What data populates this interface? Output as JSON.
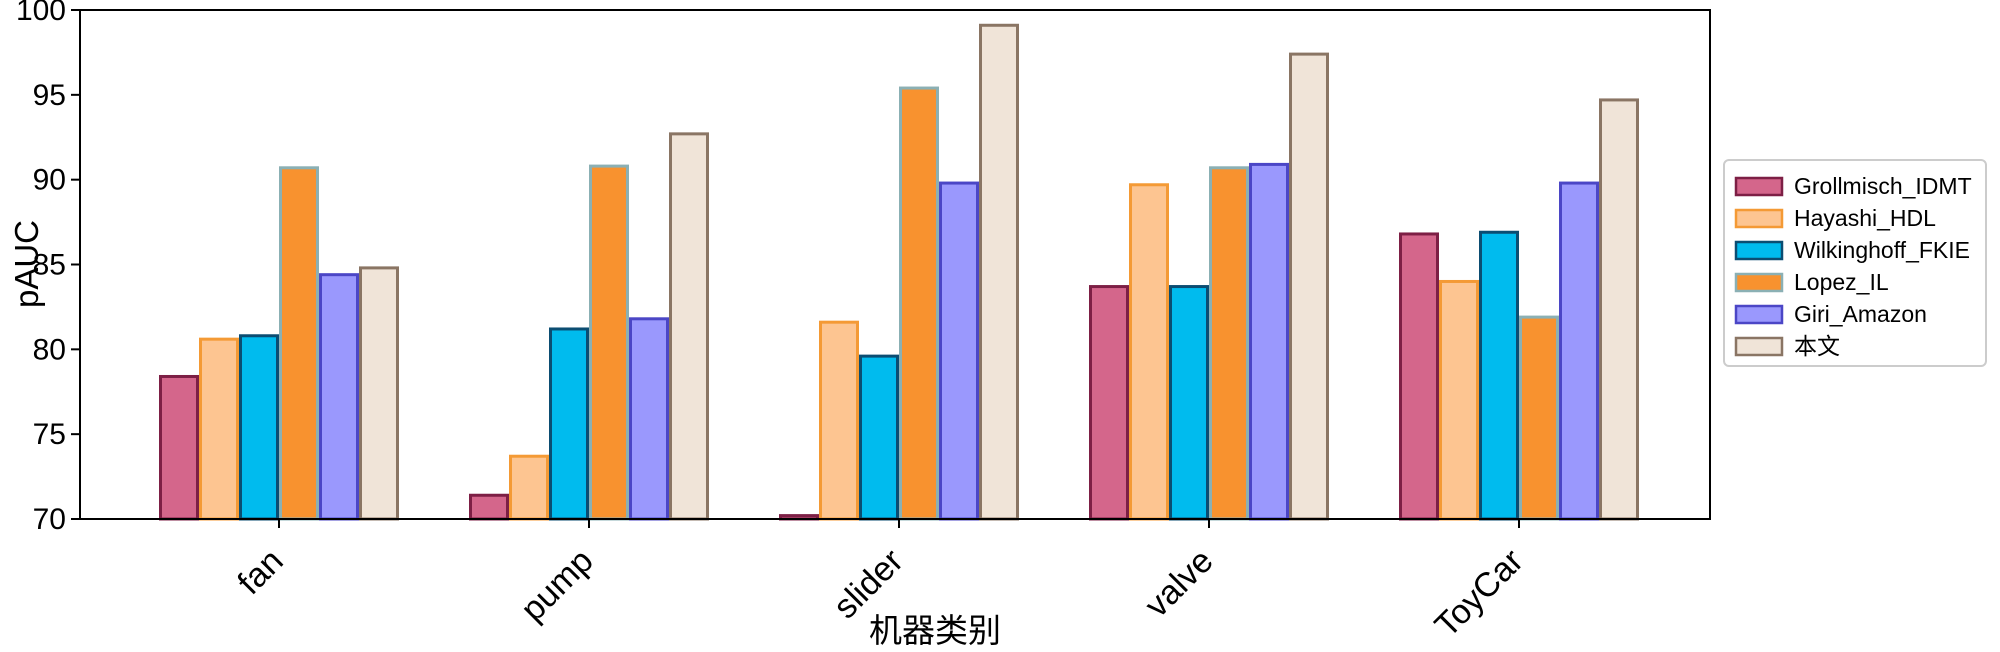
{
  "chart_data": {
    "type": "bar",
    "title": "",
    "xlabel": "机器类别",
    "ylabel": "pAUC",
    "ylim": [
      70,
      100
    ],
    "yticks": [
      70,
      75,
      80,
      85,
      90,
      95,
      100
    ],
    "categories": [
      "fan",
      "pump",
      "slider",
      "valve",
      "ToyCar"
    ],
    "legend_position": "right",
    "series": [
      {
        "name": "Grollmisch_IDMT",
        "fill": "#d4668b",
        "stroke": "#7d1f45",
        "values": [
          78.4,
          71.4,
          70.2,
          83.7,
          86.8
        ]
      },
      {
        "name": "Hayashi_HDL",
        "fill": "#fdc591",
        "stroke": "#f49a35",
        "values": [
          80.6,
          73.7,
          81.6,
          89.7,
          84.0
        ]
      },
      {
        "name": "Wilkinghoff_FKIE",
        "fill": "#00bbee",
        "stroke": "#0b4d72",
        "values": [
          80.8,
          81.2,
          79.6,
          83.7,
          86.9
        ]
      },
      {
        "name": "Lopez_IL",
        "fill": "#f8922f",
        "stroke": "#8bb0b4",
        "values": [
          90.7,
          90.8,
          95.4,
          90.7,
          81.9
        ]
      },
      {
        "name": "Giri_Amazon",
        "fill": "#9a98fd",
        "stroke": "#4b46c6",
        "values": [
          84.4,
          81.8,
          89.8,
          90.9,
          89.8
        ]
      },
      {
        "name": "本文",
        "fill": "#f0e4d8",
        "stroke": "#8a7564",
        "values": [
          84.8,
          92.7,
          99.1,
          97.4,
          94.7
        ]
      }
    ]
  }
}
